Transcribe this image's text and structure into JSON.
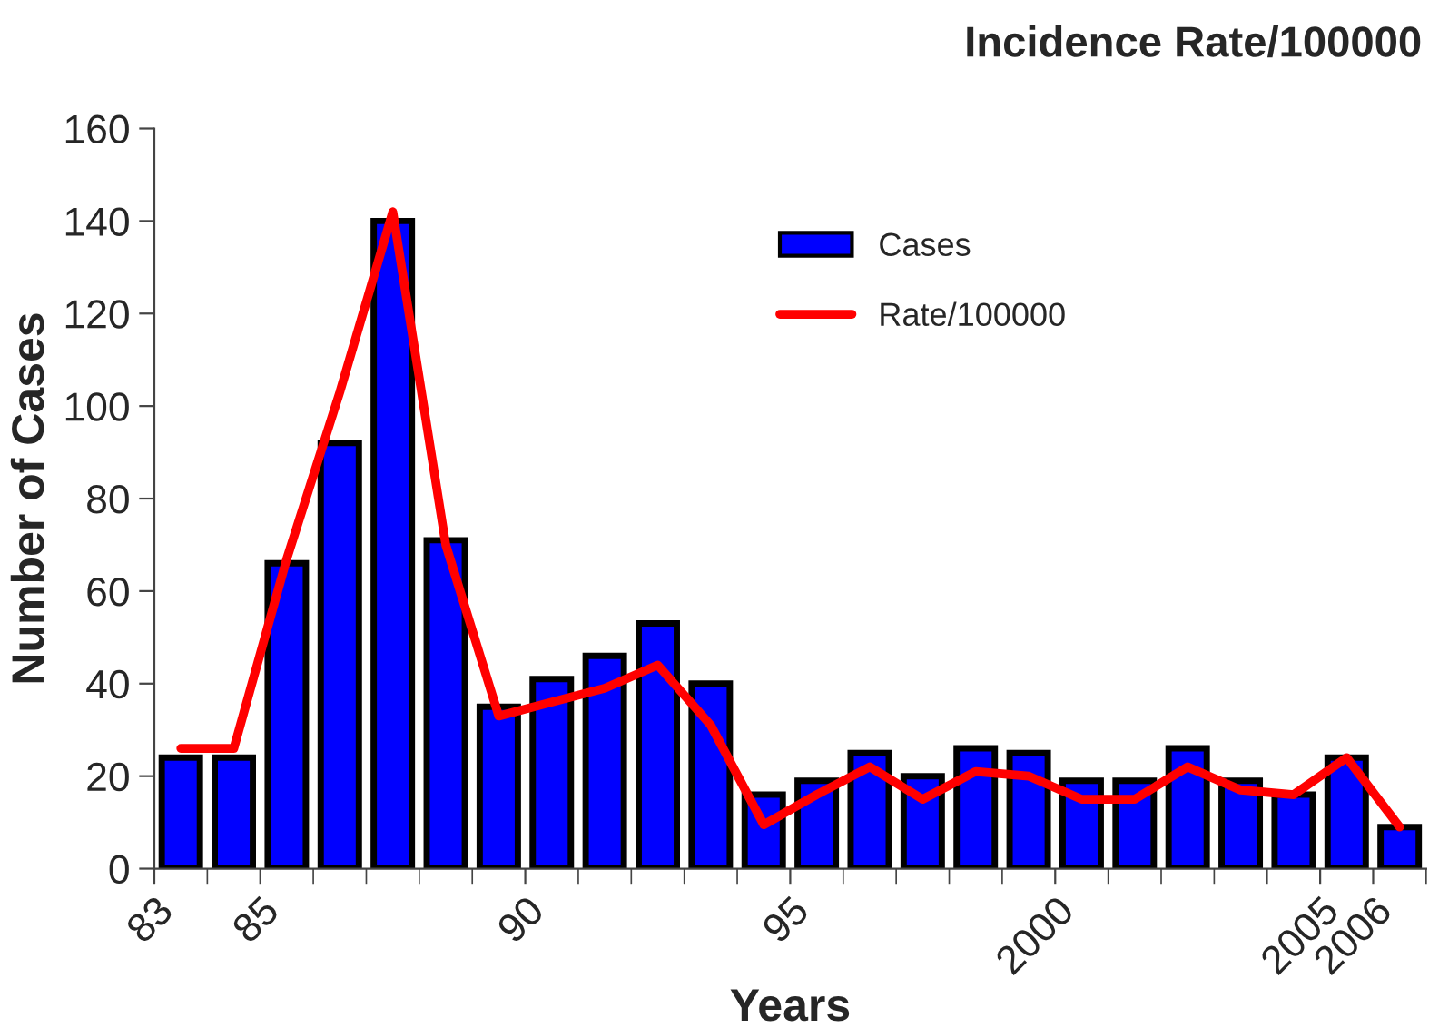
{
  "chart_data": {
    "type": "bar",
    "title": "Incidence Rate/100000",
    "xlabel": "Years",
    "ylabel": "Number of Cases",
    "x": [
      1983.5,
      1984.5,
      1985.5,
      1986.5,
      1987.5,
      1988.5,
      1989.5,
      1990.5,
      1991.5,
      1992.5,
      1993.5,
      1994.5,
      1995.5,
      1996.5,
      1997.5,
      1998.5,
      1999.5,
      2000.5,
      2001.5,
      2002.5,
      2003.5,
      2004.5,
      2005.5,
      2006.5
    ],
    "series": [
      {
        "name": "Cases",
        "color": "#0000ff",
        "values": [
          24,
          24,
          66,
          92,
          140,
          71,
          35,
          41,
          46,
          53,
          40,
          16,
          19,
          25,
          20,
          26,
          25,
          19,
          19,
          26,
          19,
          16,
          24,
          9
        ]
      },
      {
        "name": "Rate/100000",
        "type": "line",
        "color": "#ff0000",
        "values": [
          26,
          26,
          67,
          103,
          142,
          70,
          33,
          36,
          39,
          44,
          31,
          9.5,
          16,
          22,
          15,
          21,
          20,
          15,
          15,
          22,
          17,
          16,
          24,
          9
        ]
      }
    ],
    "xlim": [
      1983,
      2007
    ],
    "xticks": [
      {
        "value": 1983,
        "label": "83"
      },
      {
        "value": 1985,
        "label": "85"
      },
      {
        "value": 1990,
        "label": "90"
      },
      {
        "value": 1995,
        "label": "95"
      },
      2000,
      2005,
      2006
    ],
    "ylim": [
      0,
      160
    ],
    "yticks": [
      0,
      20,
      40,
      60,
      80,
      100,
      120,
      140,
      160
    ],
    "grid": false,
    "legend": "top right",
    "marker": "none",
    "line_style": "solid"
  }
}
